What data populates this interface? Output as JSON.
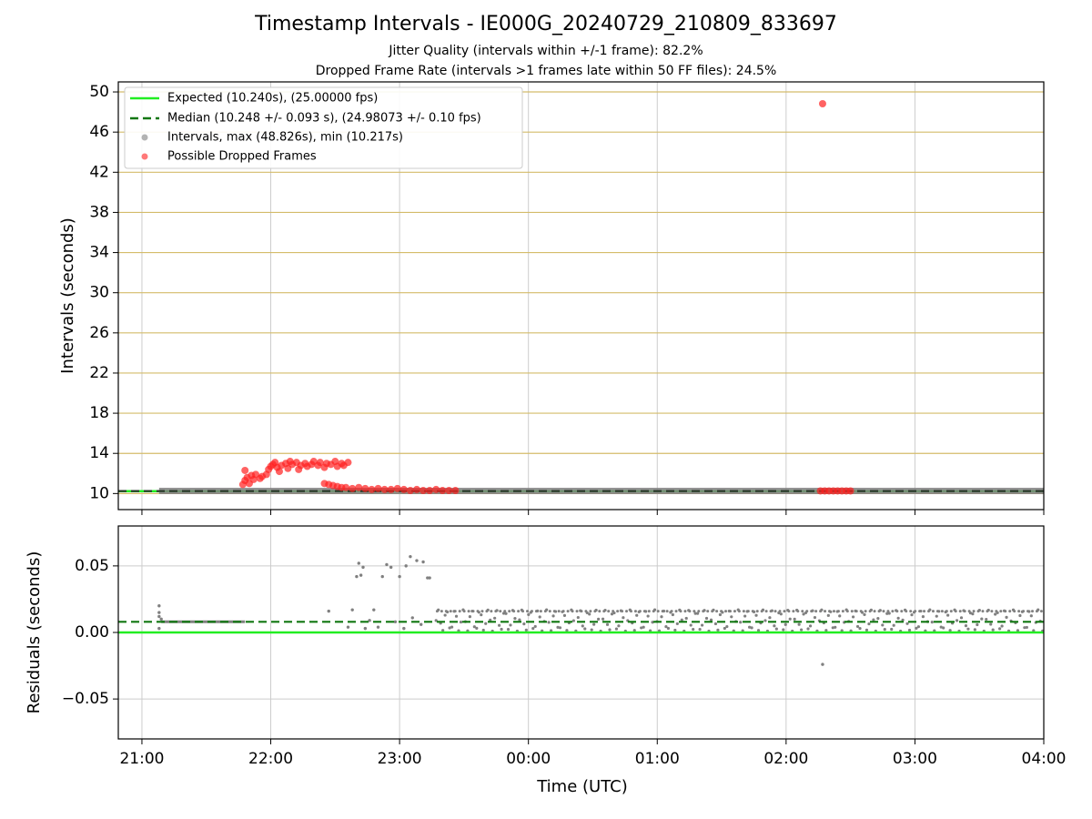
{
  "title": "Timestamp Intervals - IE000G_20240729_210809_833697",
  "subtitle_1": "Jitter Quality (intervals within +/-1 frame): 82.2%",
  "subtitle_2": "Dropped Frame Rate (intervals >1 frames late within 50 FF files): 24.5%",
  "colors": {
    "expected": "#22ee22",
    "median": "#117711",
    "intervals": "#808080",
    "dropped": "#ff2020",
    "top_grid": "#d4bc6a",
    "bottom_grid": "#cccccc",
    "x_grid": "#cccccc"
  },
  "chart_data": [
    {
      "type": "scatter",
      "xlabel": "",
      "ylabel": "Intervals (seconds)",
      "y_ticks": [
        10,
        14,
        18,
        22,
        26,
        30,
        34,
        38,
        42,
        46,
        50
      ],
      "ylim": [
        8.4,
        51.0
      ],
      "xlim": [
        "20:49",
        "04:00"
      ],
      "grid": "y-ticks and x-ticks",
      "legend_position": "upper-left",
      "legend": [
        "Expected (10.240s), (25.00000 fps)",
        "Median (10.248 +/- 0.093 s), (24.98073 +/- 0.10 fps)",
        "Intervals, max (48.826s), min (10.217s)",
        "Possible Dropped Frames"
      ],
      "series": [
        {
          "name": "Expected (10.240s), (25.00000 fps)",
          "kind": "hline",
          "y": 10.24
        },
        {
          "name": "Median (10.248 +/- 0.093 s), (24.98073 +/- 0.10 fps)",
          "kind": "hline",
          "y": 10.248
        },
        {
          "name": "Intervals, max (48.826s), min (10.217s)",
          "kind": "band",
          "x_start": "21:08",
          "x_end": "04:00",
          "y": 10.26
        },
        {
          "name": "Possible Dropped Frames",
          "kind": "points",
          "points": [
            [
              "21:47",
              10.9
            ],
            [
              "21:48",
              11.3
            ],
            [
              "21:49",
              11.6
            ],
            [
              "21:50",
              11.0
            ],
            [
              "21:51",
              11.8
            ],
            [
              "21:48",
              12.3
            ],
            [
              "21:52",
              11.4
            ],
            [
              "21:53",
              11.9
            ],
            [
              "21:55",
              11.5
            ],
            [
              "21:56",
              11.7
            ],
            [
              "21:58",
              11.9
            ],
            [
              "21:59",
              12.4
            ],
            [
              "22:00",
              12.7
            ],
            [
              "22:01",
              12.9
            ],
            [
              "22:02",
              13.1
            ],
            [
              "22:03",
              12.6
            ],
            [
              "22:04",
              12.2
            ],
            [
              "22:05",
              12.8
            ],
            [
              "22:07",
              13.0
            ],
            [
              "22:08",
              12.5
            ],
            [
              "22:09",
              13.2
            ],
            [
              "22:10",
              12.9
            ],
            [
              "22:12",
              13.1
            ],
            [
              "22:13",
              12.4
            ],
            [
              "22:14",
              12.8
            ],
            [
              "22:16",
              13.0
            ],
            [
              "22:17",
              12.7
            ],
            [
              "22:19",
              12.9
            ],
            [
              "22:20",
              13.2
            ],
            [
              "22:22",
              12.8
            ],
            [
              "22:23",
              13.1
            ],
            [
              "22:25",
              12.6
            ],
            [
              "22:26",
              13.0
            ],
            [
              "22:28",
              12.9
            ],
            [
              "22:30",
              13.2
            ],
            [
              "22:31",
              12.7
            ],
            [
              "22:33",
              13.0
            ],
            [
              "22:34",
              12.8
            ],
            [
              "22:36",
              13.1
            ],
            [
              "22:25",
              11.0
            ],
            [
              "22:27",
              10.9
            ],
            [
              "22:29",
              10.8
            ],
            [
              "22:31",
              10.7
            ],
            [
              "22:33",
              10.6
            ],
            [
              "22:35",
              10.6
            ],
            [
              "22:38",
              10.5
            ],
            [
              "22:41",
              10.6
            ],
            [
              "22:44",
              10.5
            ],
            [
              "22:47",
              10.4
            ],
            [
              "22:50",
              10.5
            ],
            [
              "22:53",
              10.4
            ],
            [
              "22:56",
              10.4
            ],
            [
              "22:59",
              10.5
            ],
            [
              "23:02",
              10.4
            ],
            [
              "23:05",
              10.3
            ],
            [
              "23:08",
              10.4
            ],
            [
              "23:11",
              10.3
            ],
            [
              "23:14",
              10.3
            ],
            [
              "23:17",
              10.4
            ],
            [
              "23:20",
              10.3
            ],
            [
              "23:23",
              10.3
            ],
            [
              "23:26",
              10.3
            ],
            [
              "02:16",
              10.26
            ],
            [
              "02:18",
              10.26
            ],
            [
              "02:20",
              10.26
            ],
            [
              "02:22",
              10.26
            ],
            [
              "02:24",
              10.26
            ],
            [
              "02:26",
              10.26
            ],
            [
              "02:28",
              10.26
            ],
            [
              "02:30",
              10.26
            ],
            [
              "02:17",
              48.826
            ]
          ]
        }
      ]
    },
    {
      "type": "scatter",
      "xlabel": "Time (UTC)",
      "ylabel": "Residuals (seconds)",
      "y_ticks": [
        -0.05,
        0.0,
        0.05
      ],
      "y_tick_labels": [
        "−0.05",
        "0.00",
        "0.05"
      ],
      "ylim": [
        -0.08,
        0.08
      ],
      "x_ticks": [
        "21:00",
        "22:00",
        "23:00",
        "00:00",
        "01:00",
        "02:00",
        "03:00",
        "04:00"
      ],
      "xlim": [
        "20:49",
        "04:00"
      ],
      "grid": "y-ticks and x-ticks",
      "series": [
        {
          "name": "Expected (10.240s), (25.00000 fps)",
          "kind": "hline",
          "y": 0.0
        },
        {
          "name": "Median (10.248 +/- 0.093 s), (24.98073 +/- 0.10 fps)",
          "kind": "hline",
          "y": 0.008
        },
        {
          "name": "Residuals",
          "kind": "points",
          "points": [
            [
              "21:08",
              0.02
            ],
            [
              "21:08",
              0.015
            ],
            [
              "21:08",
              0.003
            ],
            [
              "21:08",
              0.012
            ],
            [
              "21:09",
              0.01
            ],
            [
              "22:27",
              0.016
            ],
            [
              "22:40",
              0.042
            ],
            [
              "22:41",
              0.052
            ],
            [
              "22:43",
              0.049
            ],
            [
              "22:42",
              0.043
            ],
            [
              "22:52",
              0.042
            ],
            [
              "22:54",
              0.051
            ],
            [
              "22:56",
              0.049
            ],
            [
              "23:00",
              0.042
            ],
            [
              "23:03",
              0.05
            ],
            [
              "23:05",
              0.057
            ],
            [
              "23:08",
              0.054
            ],
            [
              "23:11",
              0.053
            ],
            [
              "23:13",
              0.041
            ],
            [
              "23:14",
              0.041
            ],
            [
              "22:36",
              0.004
            ],
            [
              "22:38",
              0.017
            ],
            [
              "22:44",
              0.003
            ],
            [
              "22:46",
              0.009
            ],
            [
              "22:48",
              0.017
            ],
            [
              "22:50",
              0.004
            ],
            [
              "22:58",
              0.008
            ],
            [
              "23:02",
              0.003
            ],
            [
              "23:06",
              0.011
            ],
            [
              "23:10",
              0.006
            ],
            [
              "02:17",
              -0.024
            ]
          ],
          "band": {
            "x_start": "23:17",
            "x_end": "04:00",
            "y_min": 0.001,
            "y_max": 0.017
          },
          "early_band": {
            "x_start": "21:09",
            "x_end": "21:48",
            "y": 0.008
          }
        }
      ]
    }
  ]
}
